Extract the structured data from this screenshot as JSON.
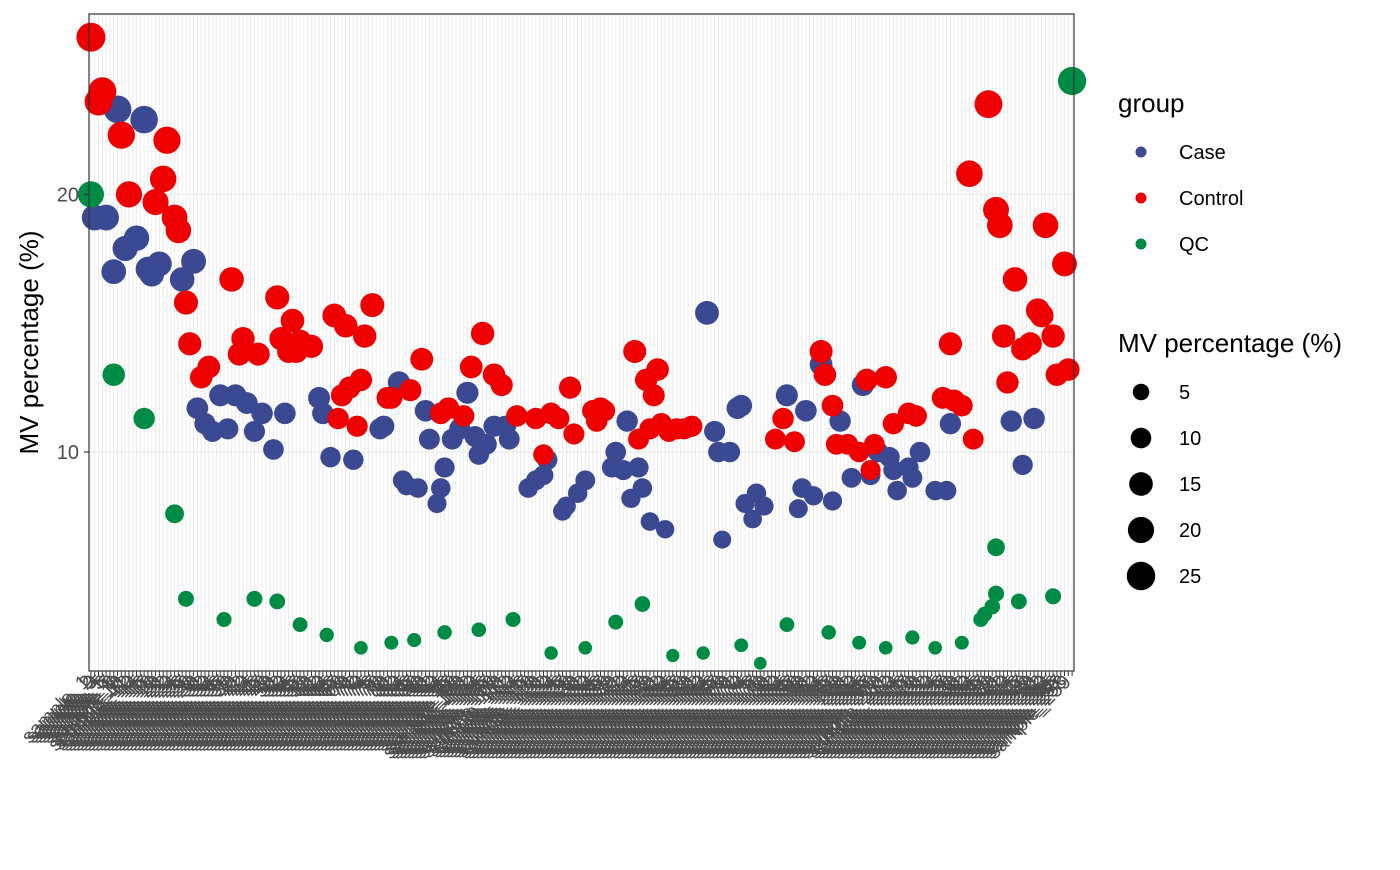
{
  "chart_data": {
    "type": "scatter",
    "xlabel": "",
    "ylabel": "MV percentage (%)",
    "ylim": [
      1.5,
      27
    ],
    "yticks": [
      10,
      20
    ],
    "grid": true,
    "legend_position": "right",
    "x_tick_label_prefix": "sample_",
    "group_legend": {
      "title": "group",
      "items": [
        {
          "name": "Case",
          "color": "#3B4992"
        },
        {
          "name": "Control",
          "color": "#EE0000"
        },
        {
          "name": "QC",
          "color": "#008B45"
        }
      ]
    },
    "size_legend": {
      "title": "MV percentage (%)",
      "values": [
        5,
        10,
        15,
        20,
        25
      ]
    },
    "n_samples": 259,
    "series": [
      {
        "name": "Case",
        "color": "#3B4992",
        "points": [
          [
            2,
            19.1
          ],
          [
            5,
            19.1
          ],
          [
            7,
            17.0
          ],
          [
            8,
            23.3
          ],
          [
            10,
            17.9
          ],
          [
            13,
            18.3
          ],
          [
            15,
            22.9
          ],
          [
            16,
            17.1
          ],
          [
            17,
            16.9
          ],
          [
            19,
            17.3
          ],
          [
            25,
            16.7
          ],
          [
            28,
            17.4
          ],
          [
            29,
            11.7
          ],
          [
            31,
            11.1
          ],
          [
            33,
            10.8
          ],
          [
            35,
            12.2
          ],
          [
            37,
            10.9
          ],
          [
            39,
            12.2
          ],
          [
            42,
            11.9
          ],
          [
            44,
            10.8
          ],
          [
            46,
            11.5
          ],
          [
            49,
            10.1
          ],
          [
            52,
            11.5
          ],
          [
            61,
            12.1
          ],
          [
            62,
            11.5
          ],
          [
            64,
            9.8
          ],
          [
            70,
            9.7
          ],
          [
            77,
            10.9
          ],
          [
            78,
            11.0
          ],
          [
            82,
            12.7
          ],
          [
            83,
            8.9
          ],
          [
            84,
            8.7
          ],
          [
            87,
            8.6
          ],
          [
            89,
            11.6
          ],
          [
            90,
            10.5
          ],
          [
            92,
            8.0
          ],
          [
            93,
            8.6
          ],
          [
            94,
            9.4
          ],
          [
            96,
            10.5
          ],
          [
            98,
            10.9
          ],
          [
            100,
            12.3
          ],
          [
            102,
            10.6
          ],
          [
            103,
            9.9
          ],
          [
            105,
            10.3
          ],
          [
            107,
            11.0
          ],
          [
            110,
            11.0
          ],
          [
            111,
            10.5
          ],
          [
            116,
            8.6
          ],
          [
            118,
            8.9
          ],
          [
            120,
            9.1
          ],
          [
            121,
            9.7
          ],
          [
            125,
            7.7
          ],
          [
            126,
            7.9
          ],
          [
            129,
            8.4
          ],
          [
            131,
            8.9
          ],
          [
            138,
            9.4
          ],
          [
            139,
            10.0
          ],
          [
            141,
            9.3
          ],
          [
            142,
            11.2
          ],
          [
            143,
            8.2
          ],
          [
            145,
            9.4
          ],
          [
            146,
            8.6
          ],
          [
            148,
            7.3
          ],
          [
            152,
            7.0
          ],
          [
            163,
            15.4
          ],
          [
            165,
            10.8
          ],
          [
            166,
            10.0
          ],
          [
            167,
            6.6
          ],
          [
            169,
            10.0
          ],
          [
            171,
            11.7
          ],
          [
            172,
            11.8
          ],
          [
            173,
            8.0
          ],
          [
            175,
            7.4
          ],
          [
            176,
            8.4
          ],
          [
            178,
            7.9
          ],
          [
            184,
            12.2
          ],
          [
            187,
            7.8
          ],
          [
            188,
            8.6
          ],
          [
            189,
            11.6
          ],
          [
            191,
            8.3
          ],
          [
            193,
            13.4
          ],
          [
            196,
            8.1
          ],
          [
            198,
            11.2
          ],
          [
            201,
            9.0
          ],
          [
            204,
            12.6
          ],
          [
            206,
            9.1
          ],
          [
            208,
            10.0
          ],
          [
            211,
            9.8
          ],
          [
            212,
            9.3
          ],
          [
            213,
            8.5
          ],
          [
            216,
            9.4
          ],
          [
            217,
            9.0
          ],
          [
            219,
            10.0
          ],
          [
            223,
            8.5
          ],
          [
            226,
            8.5
          ],
          [
            227,
            11.1
          ],
          [
            243,
            11.2
          ],
          [
            246,
            9.5
          ],
          [
            249,
            11.3
          ]
        ]
      },
      {
        "name": "Control",
        "color": "#EE0000",
        "points": [
          [
            1,
            26.1
          ],
          [
            3,
            23.6
          ],
          [
            4,
            24.0
          ],
          [
            9,
            22.3
          ],
          [
            11,
            20.0
          ],
          [
            18,
            19.7
          ],
          [
            20,
            20.6
          ],
          [
            21,
            22.1
          ],
          [
            23,
            19.1
          ],
          [
            24,
            18.6
          ],
          [
            26,
            15.8
          ],
          [
            27,
            14.2
          ],
          [
            30,
            12.9
          ],
          [
            32,
            13.3
          ],
          [
            38,
            16.7
          ],
          [
            40,
            13.8
          ],
          [
            41,
            14.4
          ],
          [
            45,
            13.8
          ],
          [
            50,
            16.0
          ],
          [
            51,
            14.4
          ],
          [
            53,
            13.9
          ],
          [
            54,
            15.1
          ],
          [
            55,
            13.9
          ],
          [
            56,
            14.3
          ],
          [
            59,
            14.1
          ],
          [
            65,
            15.3
          ],
          [
            66,
            11.3
          ],
          [
            67,
            12.2
          ],
          [
            68,
            14.9
          ],
          [
            69,
            12.5
          ],
          [
            71,
            11.0
          ],
          [
            72,
            12.8
          ],
          [
            73,
            14.5
          ],
          [
            75,
            15.7
          ],
          [
            79,
            12.1
          ],
          [
            80,
            12.1
          ],
          [
            85,
            12.4
          ],
          [
            88,
            13.6
          ],
          [
            93,
            11.5
          ],
          [
            95,
            11.7
          ],
          [
            99,
            11.4
          ],
          [
            101,
            13.3
          ],
          [
            104,
            14.6
          ],
          [
            107,
            13.0
          ],
          [
            109,
            12.6
          ],
          [
            113,
            11.4
          ],
          [
            118,
            11.3
          ],
          [
            120,
            9.9
          ],
          [
            122,
            11.5
          ],
          [
            124,
            11.3
          ],
          [
            127,
            12.5
          ],
          [
            128,
            10.7
          ],
          [
            133,
            11.6
          ],
          [
            134,
            11.2
          ],
          [
            135,
            11.7
          ],
          [
            136,
            11.6
          ],
          [
            144,
            13.9
          ],
          [
            145,
            10.5
          ],
          [
            147,
            12.8
          ],
          [
            148,
            10.9
          ],
          [
            149,
            12.2
          ],
          [
            150,
            13.2
          ],
          [
            151,
            11.1
          ],
          [
            153,
            10.8
          ],
          [
            155,
            10.9
          ],
          [
            157,
            10.9
          ],
          [
            159,
            11.0
          ],
          [
            181,
            10.5
          ],
          [
            183,
            11.3
          ],
          [
            186,
            10.4
          ],
          [
            193,
            13.9
          ],
          [
            194,
            13.0
          ],
          [
            196,
            11.8
          ],
          [
            197,
            10.3
          ],
          [
            200,
            10.3
          ],
          [
            203,
            10.0
          ],
          [
            205,
            12.8
          ],
          [
            206,
            9.3
          ],
          [
            207,
            10.3
          ],
          [
            210,
            12.9
          ],
          [
            212,
            11.1
          ],
          [
            216,
            11.5
          ],
          [
            218,
            11.4
          ],
          [
            225,
            12.1
          ],
          [
            227,
            14.2
          ],
          [
            228,
            12.0
          ],
          [
            230,
            11.8
          ],
          [
            232,
            20.8
          ],
          [
            233,
            10.5
          ],
          [
            237,
            23.5
          ],
          [
            239,
            19.4
          ],
          [
            240,
            18.8
          ],
          [
            241,
            14.5
          ],
          [
            242,
            12.7
          ],
          [
            244,
            16.7
          ],
          [
            246,
            14.0
          ],
          [
            248,
            14.2
          ],
          [
            250,
            15.5
          ],
          [
            251,
            15.3
          ],
          [
            252,
            18.8
          ],
          [
            254,
            14.5
          ],
          [
            255,
            13.0
          ],
          [
            257,
            17.3
          ],
          [
            258,
            13.2
          ]
        ]
      },
      {
        "name": "QC",
        "color": "#008B45",
        "points": [
          [
            1,
            20.0
          ],
          [
            7,
            13.0
          ],
          [
            15,
            11.3
          ],
          [
            23,
            7.6
          ],
          [
            26,
            4.3
          ],
          [
            36,
            3.5
          ],
          [
            44,
            4.3
          ],
          [
            50,
            4.2
          ],
          [
            56,
            3.3
          ],
          [
            63,
            2.9
          ],
          [
            72,
            2.4
          ],
          [
            80,
            2.6
          ],
          [
            86,
            2.7
          ],
          [
            94,
            3.0
          ],
          [
            103,
            3.1
          ],
          [
            112,
            3.5
          ],
          [
            122,
            2.2
          ],
          [
            131,
            2.4
          ],
          [
            139,
            3.4
          ],
          [
            146,
            4.1
          ],
          [
            154,
            2.1
          ],
          [
            162,
            2.2
          ],
          [
            172,
            2.5
          ],
          [
            177,
            1.8
          ],
          [
            184,
            3.3
          ],
          [
            195,
            3.0
          ],
          [
            203,
            2.6
          ],
          [
            210,
            2.4
          ],
          [
            217,
            2.8
          ],
          [
            223,
            2.4
          ],
          [
            230,
            2.6
          ],
          [
            235,
            3.5
          ],
          [
            236,
            3.7
          ],
          [
            238,
            4.0
          ],
          [
            239,
            4.5
          ],
          [
            239,
            6.3
          ],
          [
            245,
            4.2
          ],
          [
            254,
            4.4
          ],
          [
            259,
            24.4
          ]
        ]
      }
    ]
  }
}
